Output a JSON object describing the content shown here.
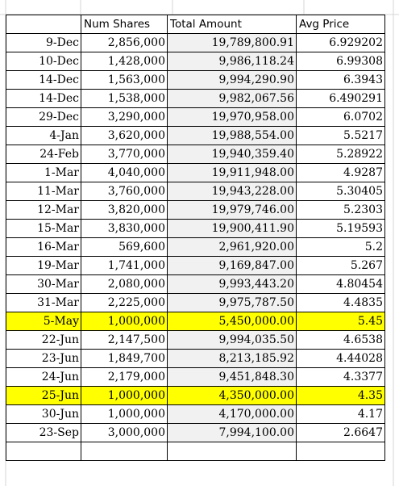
{
  "headers": [
    "",
    "Num Shares",
    "Total Amount",
    "Avg Price"
  ],
  "rows": [
    {
      "date": "9-Dec",
      "shares": "2,856,000",
      "amount": "19,789,800.91",
      "avg": "6.929202",
      "highlight": false
    },
    {
      "date": "10-Dec",
      "shares": "1,428,000",
      "amount": "9,986,118.24",
      "avg": "6.99308",
      "highlight": false
    },
    {
      "date": "14-Dec",
      "shares": "1,563,000",
      "amount": "9,994,290.90",
      "avg": "6.3943",
      "highlight": false
    },
    {
      "date": "14-Dec",
      "shares": "1,538,000",
      "amount": "9,982,067.56",
      "avg": "6.490291",
      "highlight": false
    },
    {
      "date": "29-Dec",
      "shares": "3,290,000",
      "amount": "19,970,958.00",
      "avg": "6.0702",
      "highlight": false
    },
    {
      "date": "4-Jan",
      "shares": "3,620,000",
      "amount": "19,988,554.00",
      "avg": "5.5217",
      "highlight": false
    },
    {
      "date": "24-Feb",
      "shares": "3,770,000",
      "amount": "19,940,359.40",
      "avg": "5.28922",
      "highlight": false
    },
    {
      "date": "1-Mar",
      "shares": "4,040,000",
      "amount": "19,911,948.00",
      "avg": "4.9287",
      "highlight": false
    },
    {
      "date": "11-Mar",
      "shares": "3,760,000",
      "amount": "19,943,228.00",
      "avg": "5.30405",
      "highlight": false
    },
    {
      "date": "12-Mar",
      "shares": "3,820,000",
      "amount": "19,979,746.00",
      "avg": "5.2303",
      "highlight": false
    },
    {
      "date": "15-Mar",
      "shares": "3,830,000",
      "amount": "19,900,411.90",
      "avg": "5.19593",
      "highlight": false
    },
    {
      "date": "16-Mar",
      "shares": "569,600",
      "amount": "2,961,920.00",
      "avg": "5.2",
      "highlight": false
    },
    {
      "date": "19-Mar",
      "shares": "1,741,000",
      "amount": "9,169,847.00",
      "avg": "5.267",
      "highlight": false
    },
    {
      "date": "30-Mar",
      "shares": "2,080,000",
      "amount": "9,993,443.20",
      "avg": "4.80454",
      "highlight": false
    },
    {
      "date": "31-Mar",
      "shares": "2,225,000",
      "amount": "9,975,787.50",
      "avg": "4.4835",
      "highlight": false
    },
    {
      "date": "5-May",
      "shares": "1,000,000",
      "amount": "5,450,000.00",
      "avg": "5.45",
      "highlight": true
    },
    {
      "date": "22-Jun",
      "shares": "2,147,500",
      "amount": "9,994,035.50",
      "avg": "4.6538",
      "highlight": false
    },
    {
      "date": "23-Jun",
      "shares": "1,849,700",
      "amount": "8,213,185.92",
      "avg": "4.44028",
      "highlight": false
    },
    {
      "date": "24-Jun",
      "shares": "2,179,000",
      "amount": "9,451,848.30",
      "avg": "4.3377",
      "highlight": false
    },
    {
      "date": "25-Jun",
      "shares": "1,000,000",
      "amount": "4,350,000.00",
      "avg": "4.35",
      "highlight": true
    },
    {
      "date": "30-Jun",
      "shares": "1,000,000",
      "amount": "4,170,000.00",
      "avg": "4.17",
      "highlight": false
    },
    {
      "date": "23-Sep",
      "shares": "3,000,000",
      "amount": "7,994,100.00",
      "avg": "2.6647",
      "highlight": false
    }
  ],
  "colors": {
    "highlight": "#ffff00",
    "amount_fill": "#f1f1f1",
    "border": "#000000",
    "gridline": "#d4d4d4"
  }
}
